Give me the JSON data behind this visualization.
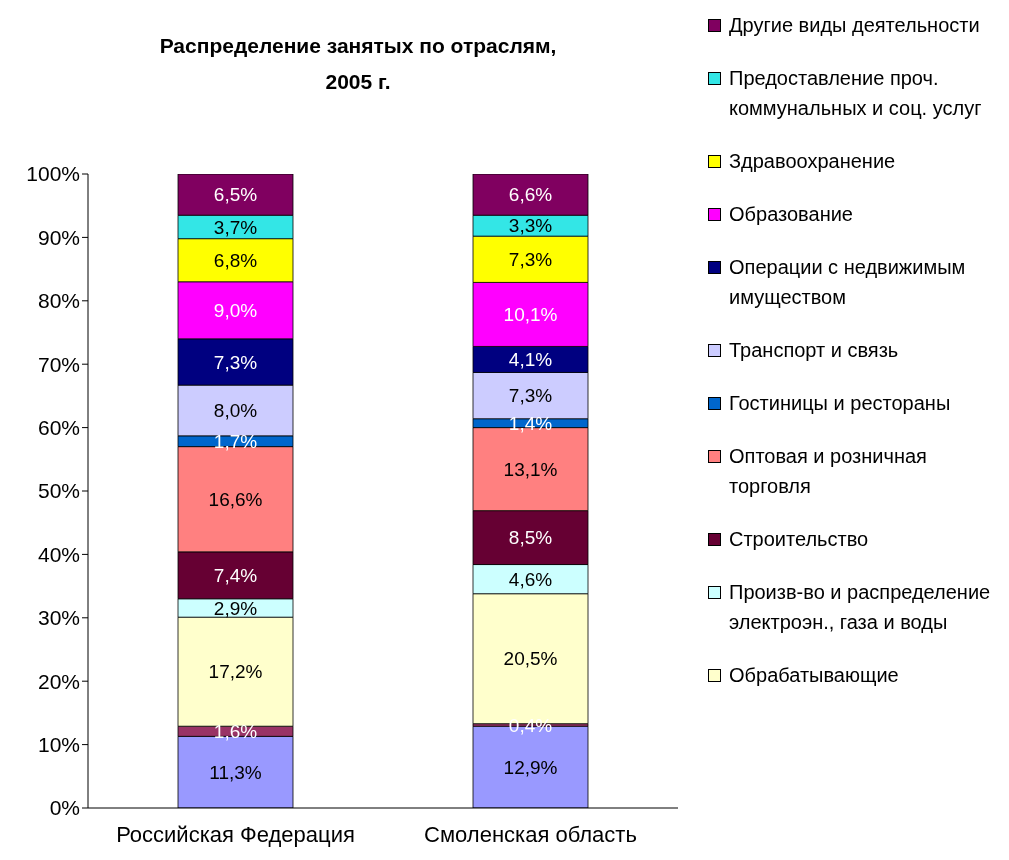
{
  "chart_data": {
    "type": "bar",
    "stacked": true,
    "title": "Распределение занятых по отраслям,\n2005 г.",
    "categories": [
      "Российская Федерация",
      "Смоленская область"
    ],
    "series": [
      {
        "color": "#9999ff",
        "values": [
          11.3,
          12.9
        ],
        "value_labels": [
          "11,3%",
          "12,9%"
        ]
      },
      {
        "color": "#993366",
        "values": [
          1.6,
          0.4
        ],
        "value_labels": [
          "1,6%",
          "0,4%"
        ]
      },
      {
        "name": "Обрабатывающие",
        "color": "#ffffcc",
        "values": [
          17.2,
          20.5
        ],
        "value_labels": [
          "17,2%",
          "20,5%"
        ]
      },
      {
        "name": "Произв-во и распределение электроэн., газа и воды",
        "color": "#ccffff",
        "values": [
          2.9,
          4.6
        ],
        "value_labels": [
          "2,9%",
          "4,6%"
        ]
      },
      {
        "name": "Строительство",
        "color": "#660033",
        "values": [
          7.4,
          8.5
        ],
        "value_labels": [
          "7,4%",
          "8,5%"
        ]
      },
      {
        "name": "Оптовая и розничная торговля",
        "color": "#ff8080",
        "values": [
          16.6,
          13.1
        ],
        "value_labels": [
          "16,6%",
          "13,1%"
        ]
      },
      {
        "name": "Гостиницы и рестораны",
        "color": "#0066cc",
        "values": [
          1.7,
          1.4
        ],
        "value_labels": [
          "1,7%",
          "1,4%"
        ]
      },
      {
        "name": "Транспорт и связь",
        "color": "#ccccff",
        "values": [
          8.0,
          7.3
        ],
        "value_labels": [
          "8,0%",
          "7,3%"
        ]
      },
      {
        "name": "Операции с недвижимым имуществом",
        "color": "#000080",
        "values": [
          7.3,
          4.1
        ],
        "value_labels": [
          "7,3%",
          "4,1%"
        ]
      },
      {
        "name": "Образование",
        "color": "#ff00ff",
        "values": [
          9.0,
          10.1
        ],
        "value_labels": [
          "9,0%",
          "10,1%"
        ]
      },
      {
        "name": "Здравоохранение",
        "color": "#ffff00",
        "values": [
          6.8,
          7.3
        ],
        "value_labels": [
          "6,8%",
          "7,3%"
        ]
      },
      {
        "name": "Предоставление проч. коммунальных и соц. услуг",
        "color": "#33e6e6",
        "values": [
          3.7,
          3.3
        ],
        "value_labels": [
          "3,7%",
          "3,3%"
        ]
      },
      {
        "name": "Другие виды деятельности",
        "color": "#800060",
        "values": [
          6.5,
          6.6
        ],
        "value_labels": [
          "6,5%",
          "6,6%"
        ]
      }
    ],
    "ylim": [
      0,
      100
    ],
    "yticks": [
      {
        "value": 0,
        "label": "0%"
      },
      {
        "value": 10,
        "label": "10%"
      },
      {
        "value": 20,
        "label": "20%"
      },
      {
        "value": 30,
        "label": "30%"
      },
      {
        "value": 40,
        "label": "40%"
      },
      {
        "value": 50,
        "label": "50%"
      },
      {
        "value": 60,
        "label": "60%"
      },
      {
        "value": 70,
        "label": "70%"
      },
      {
        "value": 80,
        "label": "80%"
      },
      {
        "value": 90,
        "label": "90%"
      },
      {
        "value": 100,
        "label": "100%"
      }
    ],
    "grid": false,
    "legend": "right"
  }
}
